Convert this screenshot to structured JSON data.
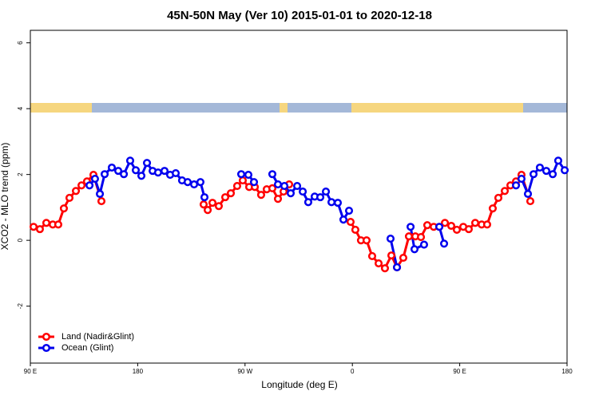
{
  "chart_data": {
    "type": "line",
    "title": "45N-50N May (Ver 10)   2015-01-01 to 2020-12-18",
    "x_label": "Longitude (deg E)",
    "y_label": "XCO2 - MLO trend (ppm)",
    "xlim": [
      90,
      540
    ],
    "xticks": [
      {
        "value": 90,
        "label": "90 E"
      },
      {
        "value": 180,
        "label": "180"
      },
      {
        "value": 270,
        "label": "90 W"
      },
      {
        "value": 360,
        "label": "0"
      },
      {
        "value": 450,
        "label": "90 E"
      },
      {
        "value": 540,
        "label": "180"
      }
    ],
    "ylim": [
      -3.73,
      6.38
    ],
    "yticks": [
      -2,
      0,
      2,
      4,
      6
    ],
    "legend": "bottom-left",
    "series": [
      {
        "name": "Land (Nadir&Glint)",
        "color": "#ff0000",
        "x": [
          92.7,
          98.0,
          103.4,
          108.8,
          113.4,
          118.1,
          122.8,
          128.2,
          132.9,
          137.5,
          142.9,
          149.6,
          192.0,
          235.3,
          238.7,
          242.7,
          248.0,
          253.4,
          258.1,
          263.4,
          268.1,
          273.5,
          278.2,
          283.5,
          288.2,
          292.9,
          297.6,
          302.3,
          307.0,
          330.0,
          358.5,
          362.5,
          367.2,
          371.9,
          376.6,
          382.0,
          387.3,
          392.7,
          397.4,
          402.7,
          407.4,
          412.8,
          417.5,
          422.8,
          428.2,
          432.9,
          437.6,
          442.9,
          447.6,
          453.0,
          457.6,
          463.0,
          468.4,
          473.0,
          477.7,
          482.4,
          487.8,
          492.5,
          497.2,
          501.8,
          509.2
        ],
        "values": [
          0.41,
          0.34,
          0.53,
          0.48,
          0.48,
          0.97,
          1.29,
          1.5,
          1.67,
          1.79,
          1.99,
          1.19,
          null,
          1.09,
          0.92,
          1.14,
          1.04,
          1.31,
          1.43,
          1.65,
          1.82,
          1.62,
          1.62,
          1.38,
          1.55,
          1.58,
          1.26,
          1.48,
          1.7,
          null,
          0.56,
          0.32,
          0,
          0,
          -0.48,
          -0.7,
          -0.85,
          -0.46,
          -0.82,
          -0.53,
          0.12,
          0.12,
          0.1,
          0.46,
          0.41,
          0.41,
          0.53,
          0.44,
          0.32,
          0.41,
          0.34,
          0.53,
          0.48,
          0.48,
          0.97,
          1.29,
          1.5,
          1.67,
          1.79,
          1.99,
          1.19
        ]
      },
      {
        "name": "Ocean (Glint)",
        "color": "#0000ee",
        "x": [
          139.6,
          144.2,
          148.3,
          152.3,
          158.3,
          163.7,
          168.4,
          173.7,
          178.4,
          183.1,
          187.8,
          192.5,
          197.1,
          202.5,
          207.2,
          211.9,
          217.2,
          221.9,
          227.3,
          232.6,
          236.0,
          250.0,
          266.8,
          272.8,
          277.5,
          285.0,
          292.9,
          297.6,
          303.0,
          308.3,
          313.7,
          318.4,
          323.0,
          328.4,
          333.1,
          337.8,
          342.5,
          347.8,
          352.5,
          357.2,
          375.0,
          392.0,
          397.4,
          403.0,
          408.8,
          412.1,
          420.1,
          427.0,
          432.9,
          436.9,
          470.0,
          497.2,
          501.8,
          507.2,
          511.9,
          517.2,
          522.6,
          528.0,
          532.6,
          538.0
        ],
        "values": [
          1.67,
          1.87,
          1.41,
          2.01,
          2.21,
          2.11,
          2.01,
          2.42,
          2.13,
          1.96,
          2.35,
          2.11,
          2.06,
          2.11,
          1.99,
          2.04,
          1.82,
          1.77,
          1.7,
          1.77,
          1.31,
          null,
          2.01,
          1.99,
          1.77,
          null,
          2.01,
          1.7,
          1.65,
          1.43,
          1.65,
          1.48,
          1.16,
          1.33,
          1.31,
          1.48,
          1.16,
          1.14,
          0.63,
          0.9,
          null,
          0.05,
          -0.82,
          null,
          0.41,
          -0.27,
          -0.13,
          null,
          0.41,
          -0.1,
          null,
          1.67,
          1.87,
          1.41,
          2.01,
          2.21,
          2.11,
          2.01,
          2.42,
          2.13
        ]
      }
    ]
  }
}
